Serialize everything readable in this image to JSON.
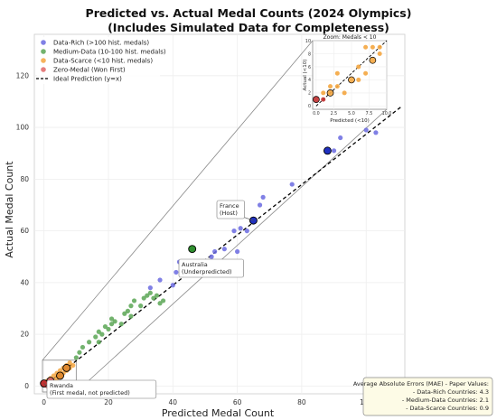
{
  "chart_data": {
    "type": "scatter",
    "title": "Predicted vs. Actual Medal Counts (2024 Olympics)",
    "subtitle": "(Includes Simulated Data for Completeness)",
    "xlabel": "Predicted Medal Count",
    "ylabel": "Actual Medal Count",
    "xlim": [
      -3,
      112
    ],
    "ylim": [
      -3,
      136
    ],
    "xticks": [
      0,
      20,
      40,
      60,
      80,
      100
    ],
    "yticks": [
      0,
      20,
      40,
      60,
      80,
      100,
      120
    ],
    "grid": true,
    "legend_position": "top-left",
    "legend": [
      {
        "label": "Data-Rich (>100 hist. medals)",
        "color": "#6a6ae0",
        "kind": "marker"
      },
      {
        "label": "Medium-Data (10-100 hist. medals)",
        "color": "#5aa655",
        "kind": "marker"
      },
      {
        "label": "Data-Scarce (<10 hist. medals)",
        "color": "#f4a640",
        "kind": "marker"
      },
      {
        "label": "Zero-Medal (Won First)",
        "color": "#e06666",
        "kind": "marker"
      },
      {
        "label": "Ideal Prediction (y=x)",
        "color": "#000000",
        "kind": "dashed-line"
      }
    ],
    "series": [
      {
        "name": "Data-Rich (>100 hist. medals)",
        "color": "#6a6ae0",
        "points": [
          [
            33,
            38
          ],
          [
            36,
            41
          ],
          [
            40,
            39
          ],
          [
            41,
            44
          ],
          [
            42,
            48
          ],
          [
            52,
            50
          ],
          [
            53,
            52
          ],
          [
            56,
            53
          ],
          [
            60,
            52
          ],
          [
            59,
            60
          ],
          [
            61,
            61
          ],
          [
            63,
            60
          ],
          [
            67,
            70
          ],
          [
            68,
            73
          ],
          [
            77,
            78
          ],
          [
            90,
            91
          ],
          [
            92,
            96
          ],
          [
            100,
            99
          ],
          [
            103,
            98
          ]
        ]
      },
      {
        "name": "Medium-Data (10-100 hist. medals)",
        "color": "#5aa655",
        "points": [
          [
            10,
            11
          ],
          [
            11,
            13
          ],
          [
            12,
            15
          ],
          [
            14,
            17
          ],
          [
            16,
            19
          ],
          [
            17,
            17
          ],
          [
            17,
            21
          ],
          [
            18,
            20
          ],
          [
            19,
            23
          ],
          [
            20,
            22
          ],
          [
            21,
            24
          ],
          [
            21,
            26
          ],
          [
            22,
            25
          ],
          [
            24,
            24
          ],
          [
            25,
            28
          ],
          [
            26,
            29
          ],
          [
            27,
            27
          ],
          [
            27,
            31
          ],
          [
            28,
            33
          ],
          [
            30,
            31
          ],
          [
            31,
            34
          ],
          [
            32,
            35
          ],
          [
            33,
            36
          ],
          [
            34,
            34
          ],
          [
            35,
            35
          ],
          [
            36,
            32
          ],
          [
            37,
            33
          ]
        ]
      },
      {
        "name": "Data-Scarce (<10 hist. medals)",
        "color": "#f4a640",
        "points": [
          [
            1,
            2
          ],
          [
            2,
            1
          ],
          [
            2,
            3
          ],
          [
            3,
            2
          ],
          [
            3,
            4
          ],
          [
            4,
            3
          ],
          [
            4,
            5
          ],
          [
            5,
            4
          ],
          [
            5,
            6
          ],
          [
            6,
            5
          ],
          [
            6,
            7
          ],
          [
            7,
            6
          ],
          [
            7,
            8
          ],
          [
            8,
            7
          ],
          [
            8,
            9
          ],
          [
            9,
            8
          ]
        ]
      },
      {
        "name": "Zero-Medal (Won First)",
        "color": "#e06666",
        "points": [
          [
            0,
            1
          ],
          [
            1,
            0
          ]
        ]
      }
    ],
    "highlights": [
      {
        "x": 88,
        "y": 91,
        "color": "#2030c0",
        "label": ""
      },
      {
        "x": 65,
        "y": 64,
        "color": "#2030c0",
        "label": "France\n(Host)"
      },
      {
        "x": 46,
        "y": 53,
        "color": "#2f8f2f",
        "label": ""
      },
      {
        "x": 53,
        "y": 47,
        "color": "#2030c0",
        "label": "Australia\n(Underpredicted)"
      },
      {
        "x": 2,
        "y": 2,
        "color": "#e07070",
        "label": ""
      },
      {
        "x": 0,
        "y": 1,
        "color": "#c03030",
        "label": "Rwanda\n(First medal, not predicted)"
      },
      {
        "x": 5,
        "y": 4,
        "color": "#e08a30",
        "label": ""
      },
      {
        "x": 7,
        "y": 7,
        "color": "#e08a30",
        "label": ""
      }
    ],
    "inset": {
      "title": "Zoom: Medals < 10",
      "xlabel": "Predicted (<10)",
      "ylabel": "Actual (<10)",
      "xlim": [
        -0.5,
        10
      ],
      "ylim": [
        -0.5,
        10
      ],
      "xticks": [
        "0.0",
        "2.5",
        "5.0",
        "7.5",
        "10.0"
      ],
      "xtick_values": [
        0,
        2.5,
        5,
        7.5,
        10
      ],
      "yticks": [
        0,
        2,
        4,
        6,
        8,
        10
      ],
      "points": [
        {
          "x": 0,
          "y": 1,
          "color": "#c03030",
          "size": 3.5,
          "outline": true
        },
        {
          "x": 1,
          "y": 1,
          "color": "#c03030",
          "size": 2.5,
          "outline": false
        },
        {
          "x": 2,
          "y": 2,
          "color": "#f4a640",
          "size": 3.5,
          "outline": true
        },
        {
          "x": 3,
          "y": 3,
          "color": "#f4a640",
          "size": 2.5,
          "outline": false
        },
        {
          "x": 4,
          "y": 2,
          "color": "#f4a640",
          "size": 2.5,
          "outline": false
        },
        {
          "x": 3,
          "y": 5,
          "color": "#f4a640",
          "size": 2.5,
          "outline": false
        },
        {
          "x": 5,
          "y": 4,
          "color": "#f4a640",
          "size": 3.5,
          "outline": true
        },
        {
          "x": 6,
          "y": 6,
          "color": "#f4a640",
          "size": 2.5,
          "outline": false
        },
        {
          "x": 6,
          "y": 4,
          "color": "#f4a640",
          "size": 2.5,
          "outline": false
        },
        {
          "x": 7,
          "y": 5,
          "color": "#f4a640",
          "size": 2.5,
          "outline": false
        },
        {
          "x": 7,
          "y": 9,
          "color": "#f4a640",
          "size": 2.5,
          "outline": false
        },
        {
          "x": 8,
          "y": 7,
          "color": "#f4a640",
          "size": 3.5,
          "outline": true
        },
        {
          "x": 8,
          "y": 9,
          "color": "#f4a640",
          "size": 2.5,
          "outline": false
        },
        {
          "x": 9,
          "y": 8,
          "color": "#f4a640",
          "size": 2.5,
          "outline": false
        },
        {
          "x": 9,
          "y": 9,
          "color": "#f4a640",
          "size": 2.5,
          "outline": false
        },
        {
          "x": 1,
          "y": 2,
          "color": "#f4a640",
          "size": 2.5,
          "outline": false
        },
        {
          "x": 2,
          "y": 3,
          "color": "#f4a640",
          "size": 2.5,
          "outline": false
        }
      ]
    },
    "annotation_box": {
      "lines": [
        "Average Absolute Errors (MAE) - Paper Values:",
        "- Data-Rich Countries: 4.3",
        "- Medium-Data Countries: 2.1",
        "- Data-Scarce Countries: 0.9"
      ]
    }
  }
}
